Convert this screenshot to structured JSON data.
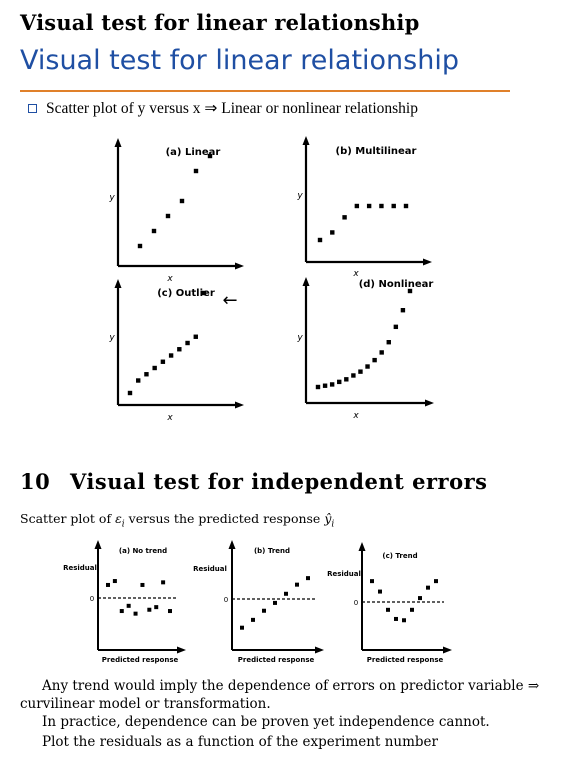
{
  "page": {
    "heading_top": "Visual test for linear relationship",
    "slide_title": "Visual test for linear relationship",
    "bullet": "Scatter plot of y versus x ⇒ Linear or nonlinear relationship",
    "section_number": "10",
    "section_title": "Visual test for independent errors",
    "caption_prefix": "Scatter plot of ",
    "caption_var": "ε",
    "caption_sub": "i",
    "caption_suffix": " versus the predicted response ",
    "caption_yhat": "ŷ",
    "caption_yhat_sub": "i",
    "para1_line1": "Any trend would imply the dependence of errors on predictor variable ⇒",
    "para1_line2": "curvilinear model or transformation.",
    "para2": "In practice, dependence can be proven yet independence cannot.",
    "para3": "Plot the residuals as a function of the experiment number"
  },
  "chart_data": [
    {
      "type": "scatter",
      "title": "(a) Linear",
      "xlabel": "x",
      "ylabel": "y",
      "points": [
        [
          1,
          1
        ],
        [
          2,
          2
        ],
        [
          3,
          3
        ],
        [
          4,
          4
        ],
        [
          5,
          6
        ],
        [
          6,
          7
        ]
      ]
    },
    {
      "type": "scatter",
      "title": "(b) Multilinear",
      "xlabel": "x",
      "ylabel": "y",
      "points": [
        [
          1,
          1
        ],
        [
          2,
          2
        ],
        [
          3,
          4
        ],
        [
          4,
          5.5
        ],
        [
          5,
          5.5
        ],
        [
          6,
          5.5
        ],
        [
          7,
          5.5
        ],
        [
          8,
          5.5
        ]
      ]
    },
    {
      "type": "scatter",
      "title": "(c) Outlier",
      "xlabel": "x",
      "ylabel": "y",
      "annotation": "←",
      "points": [
        [
          1,
          1
        ],
        [
          2,
          2
        ],
        [
          3,
          2.5
        ],
        [
          4,
          3
        ],
        [
          5,
          3.5
        ],
        [
          6,
          4
        ],
        [
          7,
          4.5
        ],
        [
          8,
          5
        ],
        [
          9,
          5.5
        ],
        [
          10,
          9
        ]
      ]
    },
    {
      "type": "scatter",
      "title": "(d) Nonlinear",
      "xlabel": "x",
      "ylabel": "y",
      "points": [
        [
          1,
          0.5
        ],
        [
          2,
          0.6
        ],
        [
          3,
          0.7
        ],
        [
          4,
          0.9
        ],
        [
          5,
          1.1
        ],
        [
          6,
          1.4
        ],
        [
          7,
          1.7
        ],
        [
          8,
          2.1
        ],
        [
          9,
          2.6
        ],
        [
          10,
          3.2
        ],
        [
          11,
          4.0
        ],
        [
          12,
          5.2
        ],
        [
          13,
          6.5
        ],
        [
          14,
          8.0
        ]
      ]
    },
    {
      "type": "scatter",
      "title": "(a) No trend",
      "xlabel": "Predicted response",
      "ylabel": "Residual",
      "zero_label": "0",
      "points": [
        [
          1,
          1
        ],
        [
          2,
          1.3
        ],
        [
          3,
          -1
        ],
        [
          4,
          -0.6
        ],
        [
          5,
          -1.2
        ],
        [
          6,
          1
        ],
        [
          7,
          -0.9
        ],
        [
          8,
          -0.7
        ],
        [
          9,
          1.2
        ],
        [
          10,
          -1
        ]
      ]
    },
    {
      "type": "scatter",
      "title": "(b) Trend",
      "xlabel": "Predicted response",
      "ylabel": "Residual",
      "zero_label": "0",
      "points": [
        [
          1,
          -2.2
        ],
        [
          2,
          -1.6
        ],
        [
          3,
          -0.9
        ],
        [
          4,
          -0.3
        ],
        [
          5,
          0.4
        ],
        [
          6,
          1.1
        ],
        [
          7,
          1.6
        ]
      ]
    },
    {
      "type": "scatter",
      "title": "(c) Trend",
      "xlabel": "Predicted response",
      "ylabel": "Residual",
      "zero_label": "0",
      "points": [
        [
          1,
          1.6
        ],
        [
          2,
          0.8
        ],
        [
          3,
          -0.6
        ],
        [
          4,
          -1.3
        ],
        [
          5,
          -1.4
        ],
        [
          6,
          -0.6
        ],
        [
          7,
          0.3
        ],
        [
          8,
          1.1
        ],
        [
          9,
          1.6
        ]
      ]
    }
  ]
}
